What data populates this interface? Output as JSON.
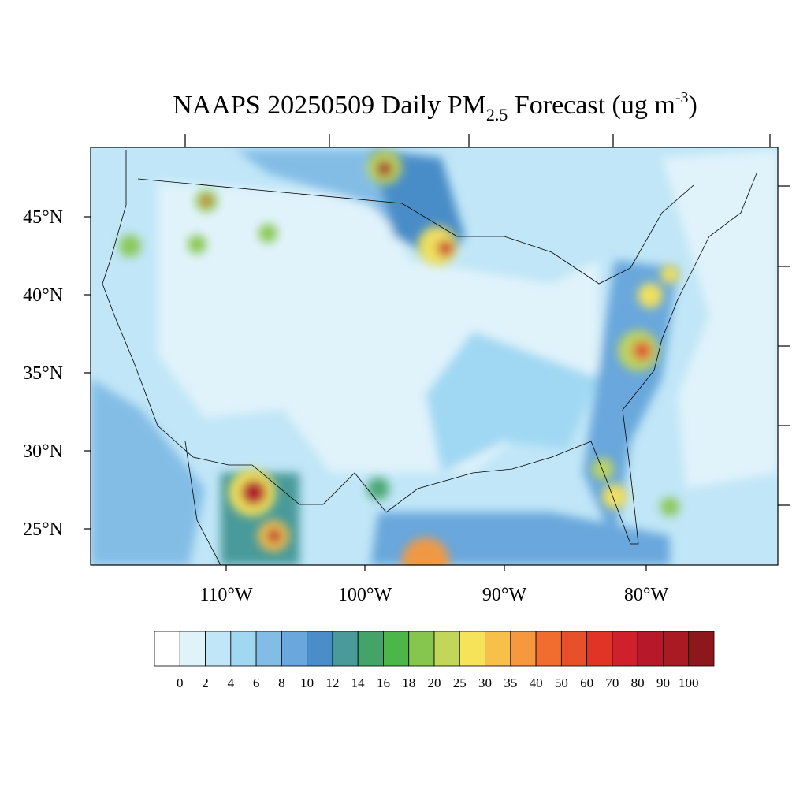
{
  "title": {
    "main": "NAAPS 20250509 Daily PM",
    "subscript": "2.5",
    "rest": " Forecast (ug m",
    "superscript": "-3",
    "end": ")"
  },
  "map": {
    "lat_labels": [
      "45°N",
      "40°N",
      "35°N",
      "30°N",
      "25°N"
    ],
    "lon_labels": [
      "110°W",
      "100°W",
      "90°W",
      "80°W"
    ]
  },
  "colorbar": {
    "levels": [
      0,
      2,
      4,
      6,
      8,
      10,
      12,
      14,
      16,
      18,
      20,
      25,
      30,
      35,
      40,
      50,
      60,
      70,
      80,
      90,
      100
    ],
    "colors": [
      "#ffffff",
      "#e0f3fb",
      "#c0e6f7",
      "#a0d8f3",
      "#83bde6",
      "#69a7dc",
      "#4a8dc8",
      "#4a9a9a",
      "#44a36b",
      "#4cb648",
      "#86c64e",
      "#c2d65a",
      "#f7e35a",
      "#f9bf4b",
      "#f6983d",
      "#f06d2f",
      "#e8502b",
      "#e03427",
      "#d0202b",
      "#b8192a",
      "#a91a22",
      "#8e171c"
    ]
  }
}
